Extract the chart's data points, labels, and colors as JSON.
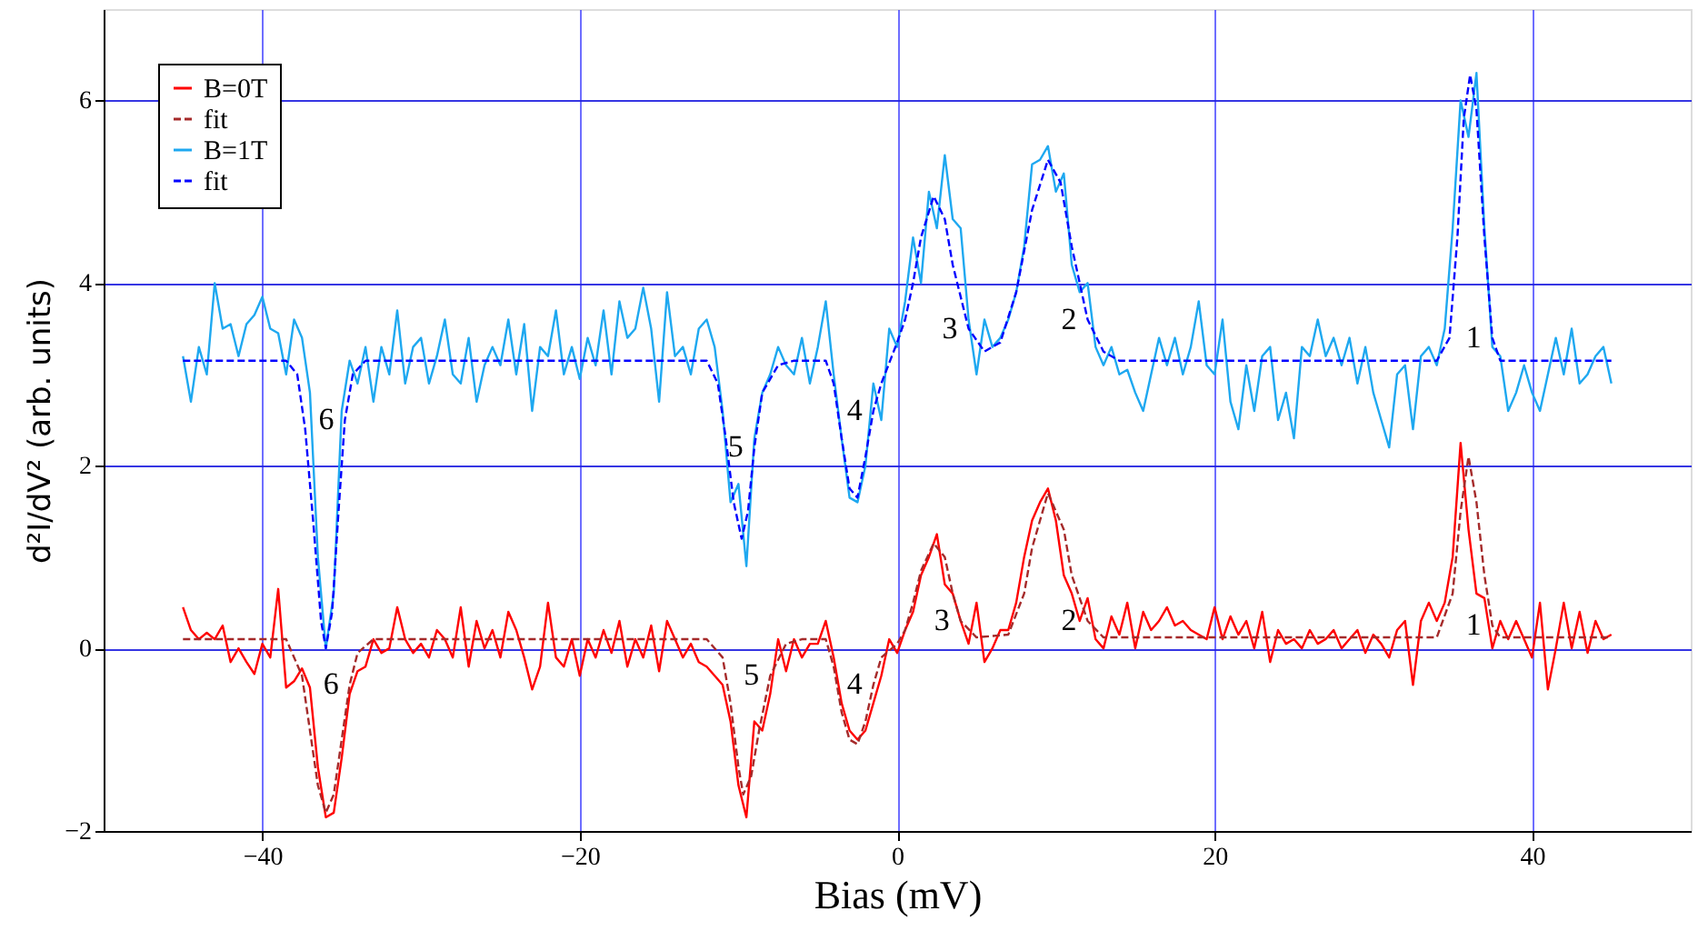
{
  "chart_data": {
    "type": "line",
    "xlabel": "Bias (mV)",
    "ylabel": "d²I/dV² (arb. units)",
    "xlim": [
      -50,
      50
    ],
    "xticks": [
      -40,
      -20,
      0,
      20,
      40
    ],
    "ylim": [
      -2,
      7
    ],
    "yticks": [
      -2,
      0,
      2,
      4,
      6
    ],
    "grid": true,
    "legend": "top left",
    "marker": "none",
    "x": [
      -45,
      -44.5,
      -44,
      -43.5,
      -43,
      -42.5,
      -42,
      -41.5,
      -41,
      -40.5,
      -40,
      -39.5,
      -39,
      -38.5,
      -38,
      -37.5,
      -37,
      -36.5,
      -36,
      -35.5,
      -35,
      -34.5,
      -34,
      -33.5,
      -33,
      -32.5,
      -32,
      -31.5,
      -31,
      -30.5,
      -30,
      -29.5,
      -29,
      -28.5,
      -28,
      -27.5,
      -27,
      -26.5,
      -26,
      -25.5,
      -25,
      -24.5,
      -24,
      -23.5,
      -23,
      -22.5,
      -22,
      -21.5,
      -21,
      -20.5,
      -20,
      -19.5,
      -19,
      -18.5,
      -18,
      -17.5,
      -17,
      -16.5,
      -16,
      -15.5,
      -15,
      -14.5,
      -14,
      -13.5,
      -13,
      -12.5,
      -12,
      -11.5,
      -11,
      -10.5,
      -10,
      -9.5,
      -9,
      -8.5,
      -8,
      -7.5,
      -7,
      -6.5,
      -6,
      -5.5,
      -5,
      -4.5,
      -4,
      -3.5,
      -3,
      -2.5,
      -2,
      -1.5,
      -1,
      -0.5,
      0,
      0.5,
      1,
      1.5,
      2,
      2.5,
      3,
      3.5,
      4,
      4.5,
      5,
      5.5,
      6,
      6.5,
      7,
      7.5,
      8,
      8.5,
      9,
      9.5,
      10,
      10.5,
      11,
      11.5,
      12,
      12.5,
      13,
      13.5,
      14,
      14.5,
      15,
      15.5,
      16,
      16.5,
      17,
      17.5,
      18,
      18.5,
      19,
      19.5,
      20,
      20.5,
      21,
      21.5,
      22,
      22.5,
      23,
      23.5,
      24,
      24.5,
      25,
      25.5,
      26,
      26.5,
      27,
      27.5,
      28,
      28.5,
      29,
      29.5,
      30,
      30.5,
      31,
      31.5,
      32,
      32.5,
      33,
      33.5,
      34,
      34.5,
      35,
      35.5,
      36,
      36.5,
      37,
      37.5,
      38,
      38.5,
      39,
      39.5,
      40,
      40.5,
      41,
      41.5,
      42,
      42.5,
      43,
      43.5,
      44,
      44.5,
      45
    ],
    "series": [
      {
        "name": "B=0T",
        "color": "#ff0000",
        "line_style": "solid",
        "values": [
          0.45,
          0.2,
          0.1,
          0.17,
          0.1,
          0.25,
          -0.15,
          0.0,
          -0.15,
          -0.28,
          0.05,
          -0.1,
          0.65,
          -0.43,
          -0.36,
          -0.22,
          -0.43,
          -1.3,
          -1.85,
          -1.8,
          -1.2,
          -0.5,
          -0.25,
          -0.2,
          0.1,
          -0.05,
          0.0,
          0.45,
          0.1,
          -0.05,
          0.05,
          -0.1,
          0.2,
          0.1,
          -0.1,
          0.45,
          -0.2,
          0.3,
          0.0,
          0.2,
          -0.1,
          0.4,
          0.2,
          -0.1,
          -0.45,
          -0.2,
          0.5,
          -0.1,
          -0.2,
          0.1,
          -0.3,
          0.1,
          -0.1,
          0.2,
          -0.05,
          0.3,
          -0.2,
          0.1,
          -0.1,
          0.25,
          -0.25,
          0.3,
          0.1,
          -0.1,
          0.05,
          -0.15,
          -0.2,
          -0.3,
          -0.4,
          -0.8,
          -1.5,
          -1.85,
          -0.8,
          -0.9,
          -0.5,
          0.1,
          -0.25,
          0.1,
          -0.1,
          0.05,
          0.05,
          0.3,
          -0.1,
          -0.6,
          -0.9,
          -1.0,
          -0.9,
          -0.6,
          -0.3,
          0.1,
          -0.05,
          0.2,
          0.4,
          0.8,
          1.0,
          1.25,
          0.7,
          0.6,
          0.3,
          0.05,
          0.5,
          -0.15,
          0.0,
          0.2,
          0.2,
          0.5,
          1.0,
          1.4,
          1.6,
          1.75,
          1.4,
          0.8,
          0.6,
          0.3,
          0.55,
          0.1,
          0.0,
          0.35,
          0.15,
          0.5,
          0.0,
          0.4,
          0.2,
          0.3,
          0.45,
          0.25,
          0.3,
          0.2,
          0.15,
          0.1,
          0.45,
          0.1,
          0.35,
          0.15,
          0.3,
          0.0,
          0.4,
          -0.15,
          0.2,
          0.05,
          0.1,
          0.0,
          0.2,
          0.05,
          0.1,
          0.2,
          0.0,
          0.1,
          0.2,
          -0.05,
          0.15,
          0.05,
          -0.1,
          0.2,
          0.3,
          -0.4,
          0.3,
          0.5,
          0.3,
          0.5,
          1.0,
          2.25,
          1.3,
          0.6,
          0.55,
          0.0,
          0.3,
          0.1,
          0.3,
          0.1,
          -0.1,
          0.5,
          -0.45,
          0.0,
          0.5,
          0.0,
          0.4,
          -0.05,
          0.3,
          0.1,
          0.15
        ]
      },
      {
        "name": "fit",
        "color": "#a52a2a",
        "line_style": "dashed",
        "x": [
          -45,
          -38.5,
          -37.5,
          -37,
          -36.5,
          -36,
          -35.5,
          -35,
          -34.5,
          -34,
          -33,
          -12,
          -11,
          -10.5,
          -10,
          -9.7,
          -9.2,
          -8.7,
          -8,
          -7,
          -6,
          -4.5,
          -4,
          -3.5,
          -3,
          -2.5,
          -2,
          -1.5,
          -1,
          0,
          0.5,
          1,
          1.5,
          2.3,
          3,
          3.5,
          4,
          5,
          7,
          8,
          8.5,
          9.5,
          10.5,
          11,
          12,
          13,
          34,
          35,
          35.5,
          36,
          36.5,
          37,
          37.5,
          38,
          45
        ],
        "values": [
          0.1,
          0.1,
          -0.3,
          -0.9,
          -1.5,
          -1.8,
          -1.6,
          -1.0,
          -0.4,
          -0.05,
          0.1,
          0.1,
          -0.1,
          -0.6,
          -1.3,
          -1.6,
          -1.4,
          -0.9,
          -0.3,
          0.05,
          0.1,
          0.1,
          -0.2,
          -0.7,
          -1.0,
          -1.05,
          -0.8,
          -0.4,
          -0.1,
          0.05,
          0.2,
          0.5,
          0.85,
          1.15,
          1.0,
          0.6,
          0.3,
          0.12,
          0.15,
          0.6,
          1.1,
          1.7,
          1.3,
          0.8,
          0.3,
          0.12,
          0.12,
          0.6,
          1.5,
          2.1,
          1.6,
          0.8,
          0.25,
          0.12,
          0.12
        ]
      },
      {
        "name": "B=1T",
        "color": "#1ea8f0",
        "line_style": "solid",
        "values": [
          3.2,
          2.7,
          3.3,
          3.0,
          4.0,
          3.5,
          3.55,
          3.2,
          3.55,
          3.65,
          3.85,
          3.5,
          3.45,
          3.0,
          3.6,
          3.4,
          2.8,
          1.0,
          0.0,
          0.6,
          2.6,
          3.15,
          2.9,
          3.3,
          2.7,
          3.3,
          3.0,
          3.7,
          2.9,
          3.3,
          3.4,
          2.9,
          3.2,
          3.6,
          3.0,
          2.9,
          3.4,
          2.7,
          3.1,
          3.3,
          3.1,
          3.6,
          3.0,
          3.55,
          2.6,
          3.3,
          3.2,
          3.7,
          3.0,
          3.3,
          2.95,
          3.4,
          3.1,
          3.7,
          3.0,
          3.8,
          3.4,
          3.5,
          3.95,
          3.5,
          2.7,
          3.9,
          3.2,
          3.3,
          3.0,
          3.5,
          3.6,
          3.3,
          2.6,
          1.6,
          1.8,
          0.9,
          2.3,
          2.8,
          3.0,
          3.3,
          3.1,
          3.0,
          3.4,
          2.9,
          3.3,
          3.8,
          3.0,
          2.3,
          1.65,
          1.6,
          2.0,
          2.9,
          2.5,
          3.5,
          3.3,
          3.8,
          4.5,
          4.0,
          5.0,
          4.6,
          5.4,
          4.7,
          4.6,
          3.6,
          3.0,
          3.6,
          3.3,
          3.4,
          3.6,
          3.9,
          4.4,
          5.3,
          5.35,
          5.5,
          5.0,
          5.2,
          4.2,
          3.9,
          4.0,
          3.3,
          3.1,
          3.3,
          3.0,
          3.05,
          2.8,
          2.6,
          3.0,
          3.4,
          3.1,
          3.4,
          3.0,
          3.3,
          3.8,
          3.1,
          3.0,
          3.6,
          2.7,
          2.4,
          3.1,
          2.6,
          3.2,
          3.3,
          2.5,
          2.8,
          2.3,
          3.3,
          3.2,
          3.6,
          3.2,
          3.4,
          3.1,
          3.4,
          2.9,
          3.3,
          2.8,
          2.5,
          2.2,
          3.0,
          3.1,
          2.4,
          3.2,
          3.3,
          3.1,
          3.5,
          4.6,
          6.0,
          5.6,
          6.3,
          4.6,
          3.3,
          3.2,
          2.6,
          2.8,
          3.1,
          2.8,
          2.6,
          3.0,
          3.4,
          3.0,
          3.5,
          2.9,
          3.0,
          3.2,
          3.3,
          2.9
        ]
      },
      {
        "name": "fit",
        "color": "#0000ff",
        "line_style": "dashed",
        "x": [
          -45,
          -38.5,
          -37.8,
          -37.3,
          -36.8,
          -36.3,
          -36,
          -35.6,
          -35.2,
          -34.8,
          -34.3,
          -33.5,
          -12,
          -11.3,
          -10.8,
          -10.3,
          -9.8,
          -9.4,
          -9,
          -8.5,
          -7.5,
          -6.5,
          -4.5,
          -4,
          -3.5,
          -3,
          -2.5,
          -2,
          -1.5,
          -1,
          0,
          0.5,
          1,
          1.5,
          2.3,
          3,
          3.5,
          4.5,
          5.5,
          6.5,
          7.5,
          8.5,
          9.5,
          10.3,
          11,
          12,
          13,
          14,
          34,
          34.8,
          35.3,
          35.7,
          36.1,
          36.5,
          37,
          37.5,
          38,
          45
        ],
        "values": [
          3.15,
          3.15,
          3.0,
          2.4,
          1.4,
          0.3,
          0.0,
          0.4,
          1.5,
          2.5,
          3.0,
          3.15,
          3.15,
          2.9,
          2.3,
          1.6,
          1.2,
          1.5,
          2.2,
          2.8,
          3.1,
          3.15,
          3.15,
          2.9,
          2.3,
          1.75,
          1.65,
          2.1,
          2.6,
          2.9,
          3.35,
          3.6,
          4.0,
          4.5,
          4.95,
          4.7,
          4.2,
          3.5,
          3.25,
          3.35,
          3.9,
          4.8,
          5.35,
          5.1,
          4.4,
          3.6,
          3.25,
          3.15,
          3.15,
          3.4,
          4.5,
          5.8,
          6.28,
          5.9,
          4.5,
          3.4,
          3.15,
          3.15
        ]
      }
    ],
    "annotations": [
      {
        "text": "6",
        "x": -34.8,
        "y": 2.5
      },
      {
        "text": "5",
        "x": -9,
        "y": 2.2
      },
      {
        "text": "4",
        "x": -1.5,
        "y": 2.6
      },
      {
        "text": "3",
        "x": 4.5,
        "y": 3.5
      },
      {
        "text": "2",
        "x": 12,
        "y": 3.6
      },
      {
        "text": "1",
        "x": 37.5,
        "y": 3.4
      },
      {
        "text": "6",
        "x": -34.5,
        "y": -0.4
      },
      {
        "text": "5",
        "x": -8,
        "y": -0.3
      },
      {
        "text": "4",
        "x": -1.5,
        "y": -0.4
      },
      {
        "text": "3",
        "x": 4,
        "y": 0.3
      },
      {
        "text": "2",
        "x": 12,
        "y": 0.3
      },
      {
        "text": "1",
        "x": 37.5,
        "y": 0.25
      }
    ]
  }
}
